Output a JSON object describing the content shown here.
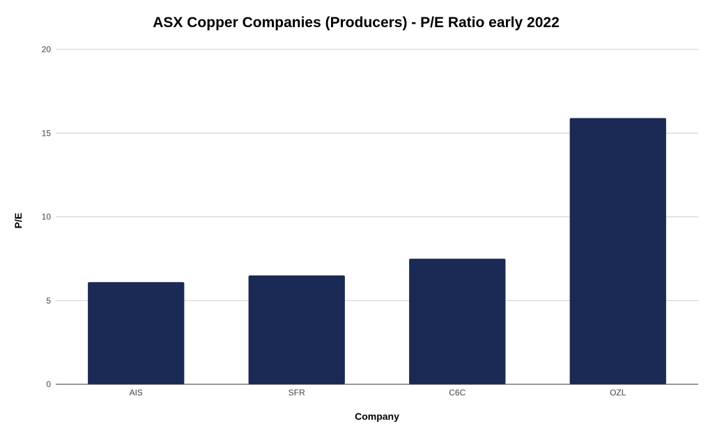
{
  "chart_data": {
    "type": "bar",
    "title": "ASX Copper Companies (Producers) - P/E Ratio early 2022",
    "xlabel": "Company",
    "ylabel": "P/E",
    "categories": [
      "AIS",
      "SFR",
      "C6C",
      "OZL"
    ],
    "values": [
      6.1,
      6.5,
      7.5,
      15.9
    ],
    "ylim": [
      0,
      20
    ],
    "yticks": [
      "0",
      "5",
      "10",
      "15",
      "20"
    ],
    "grid": true,
    "legend": "none",
    "bar_color": "#1b2955"
  }
}
